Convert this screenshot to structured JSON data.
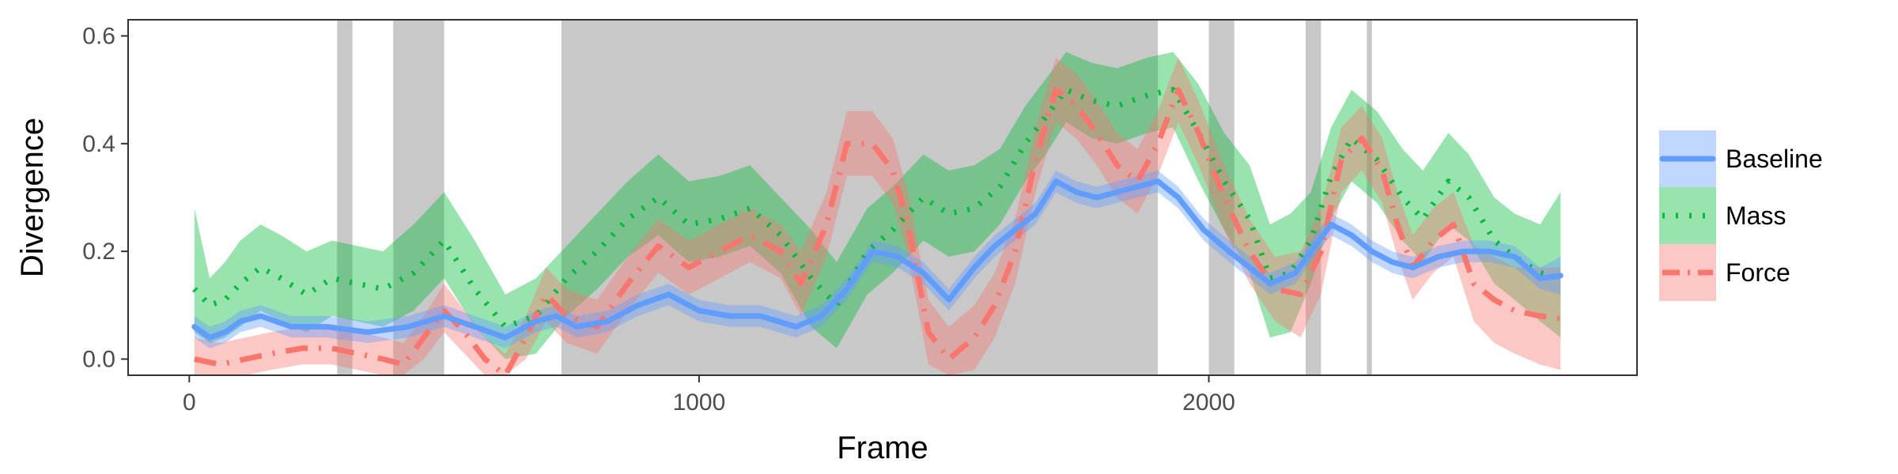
{
  "chart_data": {
    "type": "line",
    "xlabel": "Frame",
    "ylabel": "Divergence",
    "xlim": [
      -120,
      2840
    ],
    "ylim": [
      -0.03,
      0.63
    ],
    "x_ticks": [
      0,
      1000,
      2000
    ],
    "x_tick_labels": [
      "0",
      "1000",
      "2000"
    ],
    "y_ticks": [
      0.0,
      0.2,
      0.4,
      0.6
    ],
    "y_tick_labels": [
      "0.0",
      "0.2",
      "0.4",
      "0.6"
    ],
    "grid": false,
    "legend": "right",
    "shaded_regions": [
      [
        290,
        320
      ],
      [
        400,
        500
      ],
      [
        730,
        1900
      ],
      [
        2000,
        2050
      ],
      [
        2190,
        2220
      ],
      [
        2310,
        2320
      ]
    ],
    "colors": {
      "Baseline": "#619cff",
      "Mass": "#00ba38",
      "Force": "#f8766d",
      "region": "#c8c8c8"
    },
    "series": [
      {
        "name": "Baseline",
        "style": "solid",
        "x": [
          10,
          40,
          70,
          100,
          140,
          200,
          270,
          350,
          430,
          500,
          560,
          620,
          680,
          720,
          760,
          820,
          880,
          940,
          1000,
          1060,
          1120,
          1190,
          1240,
          1290,
          1340,
          1390,
          1440,
          1490,
          1540,
          1580,
          1620,
          1660,
          1700,
          1740,
          1780,
          1820,
          1860,
          1900,
          1940,
          1990,
          2040,
          2080,
          2120,
          2170,
          2200,
          2240,
          2280,
          2320,
          2360,
          2400,
          2450,
          2500,
          2550,
          2600,
          2650,
          2690
        ],
        "y": [
          0.06,
          0.04,
          0.05,
          0.07,
          0.08,
          0.06,
          0.06,
          0.05,
          0.06,
          0.08,
          0.06,
          0.04,
          0.07,
          0.08,
          0.06,
          0.07,
          0.1,
          0.12,
          0.09,
          0.08,
          0.08,
          0.06,
          0.08,
          0.13,
          0.2,
          0.19,
          0.16,
          0.11,
          0.17,
          0.21,
          0.24,
          0.27,
          0.33,
          0.31,
          0.3,
          0.31,
          0.32,
          0.33,
          0.3,
          0.24,
          0.2,
          0.17,
          0.14,
          0.16,
          0.2,
          0.25,
          0.23,
          0.2,
          0.18,
          0.17,
          0.19,
          0.2,
          0.2,
          0.19,
          0.15,
          0.155
        ],
        "lower": [
          0.04,
          0.02,
          0.03,
          0.05,
          0.06,
          0.04,
          0.04,
          0.03,
          0.04,
          0.06,
          0.04,
          0.02,
          0.05,
          0.06,
          0.04,
          0.05,
          0.08,
          0.1,
          0.07,
          0.06,
          0.06,
          0.04,
          0.06,
          0.11,
          0.18,
          0.17,
          0.14,
          0.09,
          0.15,
          0.19,
          0.22,
          0.25,
          0.31,
          0.29,
          0.28,
          0.29,
          0.3,
          0.31,
          0.28,
          0.22,
          0.18,
          0.15,
          0.12,
          0.14,
          0.18,
          0.23,
          0.21,
          0.18,
          0.16,
          0.15,
          0.17,
          0.18,
          0.18,
          0.17,
          0.13,
          0.12
        ],
        "upper": [
          0.08,
          0.06,
          0.07,
          0.09,
          0.1,
          0.08,
          0.08,
          0.07,
          0.08,
          0.1,
          0.08,
          0.06,
          0.09,
          0.1,
          0.08,
          0.09,
          0.12,
          0.14,
          0.11,
          0.1,
          0.1,
          0.08,
          0.1,
          0.15,
          0.22,
          0.21,
          0.18,
          0.13,
          0.19,
          0.23,
          0.26,
          0.29,
          0.35,
          0.33,
          0.32,
          0.33,
          0.34,
          0.35,
          0.32,
          0.26,
          0.22,
          0.19,
          0.16,
          0.18,
          0.22,
          0.27,
          0.25,
          0.22,
          0.2,
          0.19,
          0.21,
          0.22,
          0.22,
          0.21,
          0.17,
          0.19
        ]
      },
      {
        "name": "Mass",
        "style": "dotted",
        "x": [
          10,
          40,
          70,
          100,
          140,
          180,
          230,
          280,
          330,
          380,
          440,
          500,
          560,
          620,
          680,
          740,
          800,
          860,
          920,
          980,
          1040,
          1100,
          1160,
          1220,
          1270,
          1330,
          1380,
          1440,
          1490,
          1540,
          1590,
          1640,
          1680,
          1720,
          1770,
          1820,
          1880,
          1930,
          1980,
          2030,
          2080,
          2120,
          2160,
          2200,
          2240,
          2280,
          2330,
          2380,
          2420,
          2470,
          2510,
          2560,
          2600,
          2650,
          2690
        ],
        "y": [
          0.13,
          0.1,
          0.11,
          0.14,
          0.17,
          0.15,
          0.12,
          0.15,
          0.14,
          0.13,
          0.16,
          0.22,
          0.13,
          0.06,
          0.08,
          0.15,
          0.2,
          0.26,
          0.3,
          0.25,
          0.26,
          0.28,
          0.23,
          0.15,
          0.1,
          0.2,
          0.24,
          0.3,
          0.27,
          0.28,
          0.32,
          0.4,
          0.45,
          0.5,
          0.48,
          0.47,
          0.49,
          0.5,
          0.42,
          0.33,
          0.26,
          0.15,
          0.16,
          0.22,
          0.34,
          0.41,
          0.37,
          0.3,
          0.26,
          0.33,
          0.3,
          0.22,
          0.19,
          0.16,
          0.15
        ],
        "lower": [
          0.05,
          0.03,
          0.04,
          0.06,
          0.09,
          0.07,
          0.05,
          0.08,
          0.07,
          0.06,
          0.09,
          0.15,
          0.06,
          0.0,
          0.01,
          0.08,
          0.13,
          0.19,
          0.23,
          0.18,
          0.19,
          0.21,
          0.16,
          0.06,
          0.02,
          0.12,
          0.16,
          0.22,
          0.19,
          0.2,
          0.25,
          0.33,
          0.38,
          0.44,
          0.41,
          0.4,
          0.42,
          0.43,
          0.33,
          0.24,
          0.16,
          0.04,
          0.05,
          0.14,
          0.26,
          0.33,
          0.29,
          0.22,
          0.18,
          0.25,
          0.22,
          0.14,
          0.11,
          0.07,
          0.04
        ],
        "upper": [
          0.28,
          0.15,
          0.18,
          0.22,
          0.25,
          0.23,
          0.2,
          0.22,
          0.21,
          0.2,
          0.25,
          0.31,
          0.22,
          0.12,
          0.15,
          0.21,
          0.27,
          0.33,
          0.38,
          0.33,
          0.34,
          0.36,
          0.3,
          0.24,
          0.18,
          0.28,
          0.32,
          0.38,
          0.35,
          0.36,
          0.39,
          0.47,
          0.52,
          0.57,
          0.55,
          0.54,
          0.56,
          0.57,
          0.51,
          0.42,
          0.36,
          0.25,
          0.27,
          0.31,
          0.43,
          0.5,
          0.46,
          0.39,
          0.35,
          0.42,
          0.38,
          0.3,
          0.27,
          0.25,
          0.31
        ]
      },
      {
        "name": "Force",
        "style": "dotdash",
        "x": [
          10,
          60,
          110,
          160,
          220,
          280,
          330,
          380,
          420,
          460,
          500,
          540,
          580,
          620,
          660,
          700,
          740,
          800,
          860,
          920,
          980,
          1040,
          1100,
          1160,
          1200,
          1250,
          1290,
          1340,
          1380,
          1410,
          1450,
          1490,
          1540,
          1580,
          1620,
          1660,
          1700,
          1740,
          1780,
          1820,
          1860,
          1900,
          1940,
          1980,
          2030,
          2080,
          2130,
          2180,
          2220,
          2260,
          2300,
          2340,
          2370,
          2400,
          2440,
          2480,
          2520,
          2560,
          2600,
          2650,
          2690
        ],
        "y": [
          0.0,
          -0.01,
          0.0,
          0.01,
          0.02,
          0.02,
          0.01,
          0.0,
          -0.01,
          0.04,
          0.09,
          0.05,
          0.0,
          -0.03,
          0.04,
          0.12,
          0.08,
          0.06,
          0.14,
          0.21,
          0.17,
          0.2,
          0.23,
          0.2,
          0.14,
          0.25,
          0.4,
          0.4,
          0.35,
          0.25,
          0.05,
          0.0,
          0.04,
          0.1,
          0.2,
          0.37,
          0.5,
          0.47,
          0.42,
          0.36,
          0.33,
          0.4,
          0.5,
          0.42,
          0.3,
          0.2,
          0.13,
          0.12,
          0.2,
          0.37,
          0.41,
          0.35,
          0.25,
          0.17,
          0.22,
          0.25,
          0.14,
          0.11,
          0.09,
          0.08,
          0.075
        ],
        "lower": [
          -0.03,
          -0.03,
          -0.03,
          -0.02,
          -0.01,
          -0.01,
          -0.02,
          -0.03,
          -0.03,
          0.0,
          0.05,
          0.01,
          -0.03,
          -0.03,
          0.0,
          0.07,
          0.03,
          0.01,
          0.09,
          0.16,
          0.12,
          0.15,
          0.18,
          0.15,
          0.08,
          0.19,
          0.34,
          0.34,
          0.29,
          0.19,
          -0.01,
          -0.03,
          -0.02,
          0.04,
          0.14,
          0.31,
          0.44,
          0.41,
          0.36,
          0.3,
          0.27,
          0.34,
          0.44,
          0.36,
          0.24,
          0.14,
          0.07,
          0.04,
          0.12,
          0.31,
          0.35,
          0.29,
          0.19,
          0.11,
          0.16,
          0.19,
          0.07,
          0.03,
          0.01,
          -0.01,
          -0.02
        ],
        "upper": [
          0.04,
          0.03,
          0.04,
          0.05,
          0.06,
          0.06,
          0.05,
          0.04,
          0.03,
          0.08,
          0.14,
          0.09,
          0.04,
          0.01,
          0.08,
          0.17,
          0.13,
          0.11,
          0.19,
          0.26,
          0.22,
          0.25,
          0.28,
          0.25,
          0.2,
          0.31,
          0.46,
          0.46,
          0.41,
          0.31,
          0.11,
          0.06,
          0.1,
          0.16,
          0.26,
          0.43,
          0.56,
          0.53,
          0.48,
          0.42,
          0.39,
          0.46,
          0.56,
          0.48,
          0.36,
          0.26,
          0.19,
          0.2,
          0.28,
          0.43,
          0.47,
          0.41,
          0.31,
          0.23,
          0.28,
          0.31,
          0.21,
          0.19,
          0.17,
          0.17,
          0.17
        ]
      }
    ]
  }
}
